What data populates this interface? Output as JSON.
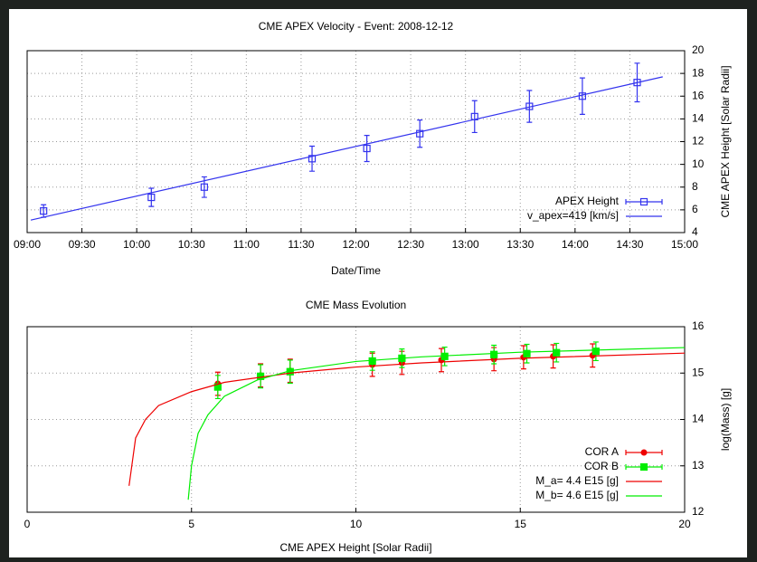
{
  "chart_data": [
    {
      "type": "line",
      "title": "CME APEX Velocity - Event: 2008-12-12",
      "x_label": "Date/Time",
      "y_label": "CME APEX Height [Solar Radii]",
      "xlim": [
        "09:00",
        "15:00"
      ],
      "xticks": [
        "09:00",
        "09:30",
        "10:00",
        "10:30",
        "11:00",
        "11:30",
        "12:00",
        "12:30",
        "13:00",
        "13:30",
        "14:00",
        "14:30",
        "15:00"
      ],
      "ylim": [
        4,
        20
      ],
      "yticks": [
        4,
        6,
        8,
        10,
        12,
        14,
        16,
        18,
        20
      ],
      "grid": true,
      "legend": "lower right",
      "series": [
        {
          "name": "APEX Height",
          "color": "#3333ee",
          "style": "errorbar",
          "marker": "open-square",
          "x": [
            "09:09",
            "10:08",
            "10:37",
            "11:36",
            "12:06",
            "12:35",
            "13:05",
            "13:35",
            "14:04",
            "14:34"
          ],
          "values": [
            5.9,
            7.1,
            8.0,
            10.5,
            11.4,
            12.7,
            14.2,
            15.1,
            16.0,
            17.2
          ],
          "errors": [
            0.55,
            0.8,
            0.9,
            1.1,
            1.15,
            1.2,
            1.4,
            1.4,
            1.6,
            1.7
          ]
        },
        {
          "name": "v_apex=419 [km/s]",
          "color": "#3333ee",
          "style": "line",
          "x": [
            "09:02",
            "14:48"
          ],
          "values": [
            5.1,
            17.7
          ]
        }
      ]
    },
    {
      "type": "line",
      "title": "CME Mass Evolution",
      "x_label": "CME APEX Height [Solar Radii]",
      "y_label": "log(Mass) [g]",
      "xlim": [
        0,
        20
      ],
      "xticks": [
        0,
        5,
        10,
        15,
        20
      ],
      "ylim": [
        12,
        16
      ],
      "yticks": [
        12,
        13,
        14,
        15,
        16
      ],
      "grid": true,
      "legend": "lower right",
      "series": [
        {
          "name": "COR A",
          "color": "#ee0000",
          "style": "errorbar",
          "marker": "circle",
          "x": [
            5.8,
            7.1,
            8.0,
            10.5,
            11.4,
            12.6,
            14.2,
            15.1,
            16.0,
            17.2
          ],
          "values": [
            14.77,
            14.95,
            15.05,
            15.18,
            15.22,
            15.28,
            15.3,
            15.34,
            15.36,
            15.38
          ],
          "errors": [
            0.25,
            0.25,
            0.25,
            0.25,
            0.25,
            0.25,
            0.25,
            0.25,
            0.25,
            0.25
          ]
        },
        {
          "name": "COR B",
          "color": "#00ee00",
          "style": "errorbar",
          "marker": "square",
          "x": [
            5.8,
            7.1,
            8.0,
            10.5,
            11.4,
            12.7,
            14.2,
            15.2,
            16.1,
            17.3
          ],
          "values": [
            14.7,
            14.93,
            15.03,
            15.26,
            15.32,
            15.36,
            15.4,
            15.42,
            15.44,
            15.47
          ],
          "errors": [
            0.25,
            0.25,
            0.25,
            0.2,
            0.2,
            0.2,
            0.2,
            0.2,
            0.2,
            0.2
          ]
        },
        {
          "name": "M_a= 4.4 E15 [g]",
          "color": "#ee0000",
          "style": "line",
          "x": [
            3.1,
            3.3,
            3.6,
            4,
            5,
            6,
            8,
            10,
            12,
            15,
            20
          ],
          "values": [
            12.57,
            13.6,
            14.0,
            14.3,
            14.6,
            14.8,
            15.0,
            15.13,
            15.22,
            15.32,
            15.43
          ]
        },
        {
          "name": "M_b= 4.6 E15 [g]",
          "color": "#00ee00",
          "style": "line",
          "x": [
            4.9,
            5.0,
            5.2,
            5.5,
            6,
            7,
            8,
            10,
            12,
            15,
            20
          ],
          "values": [
            12.27,
            13.0,
            13.7,
            14.1,
            14.5,
            14.85,
            15.05,
            15.25,
            15.35,
            15.45,
            15.55
          ]
        }
      ]
    }
  ]
}
